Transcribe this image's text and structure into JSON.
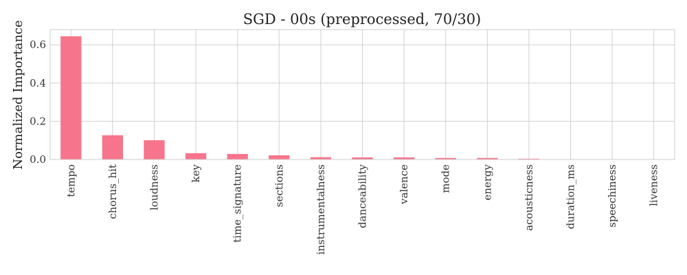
{
  "chart_data": {
    "type": "bar",
    "title": "SGD - 00s (preprocessed, 70/30)",
    "xlabel": "",
    "ylabel": "Normalized Importance",
    "categories": [
      "tempo",
      "chorus_hit",
      "loudness",
      "key",
      "time_signature",
      "sections",
      "instrumentalness",
      "danceability",
      "valence",
      "mode",
      "energy",
      "acousticness",
      "duration_ms",
      "speechiness",
      "liveness"
    ],
    "values": [
      0.645,
      0.127,
      0.101,
      0.033,
      0.029,
      0.022,
      0.012,
      0.011,
      0.011,
      0.008,
      0.008,
      0.004,
      0.001,
      0.001,
      0.001
    ],
    "ylim": [
      0,
      0.68
    ],
    "yticks": [
      0.0,
      0.2,
      0.4,
      0.6
    ],
    "ytick_labels": [
      "0.0",
      "0.2",
      "0.4",
      "0.6"
    ],
    "bar_color": "#f7758c",
    "grid": true,
    "legend": "none"
  }
}
